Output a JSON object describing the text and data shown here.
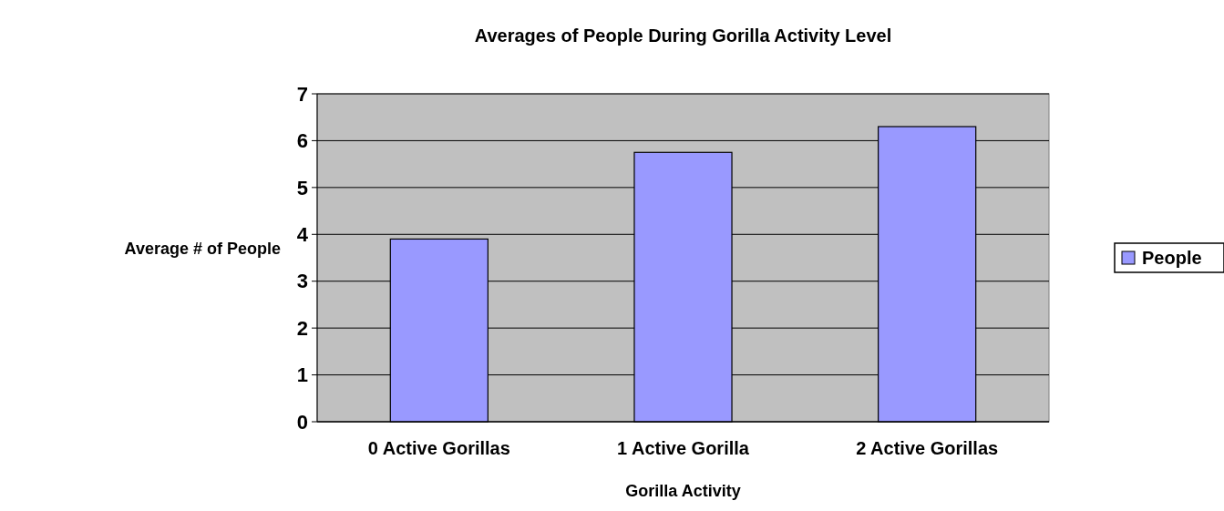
{
  "chart_data": {
    "type": "bar",
    "title": "Averages of People During Gorilla Activity Level",
    "xlabel": "Gorilla Activity",
    "ylabel": "Average # of People",
    "categories": [
      "0 Active Gorillas",
      "1 Active Gorilla",
      "2 Active Gorillas"
    ],
    "series": [
      {
        "name": "People",
        "color": "#9999ff",
        "values": [
          3.9,
          5.75,
          6.3
        ]
      }
    ],
    "ylim": [
      0,
      7
    ],
    "yticks": [
      0,
      1,
      2,
      3,
      4,
      5,
      6,
      7
    ],
    "grid": "y",
    "legend": "right"
  }
}
